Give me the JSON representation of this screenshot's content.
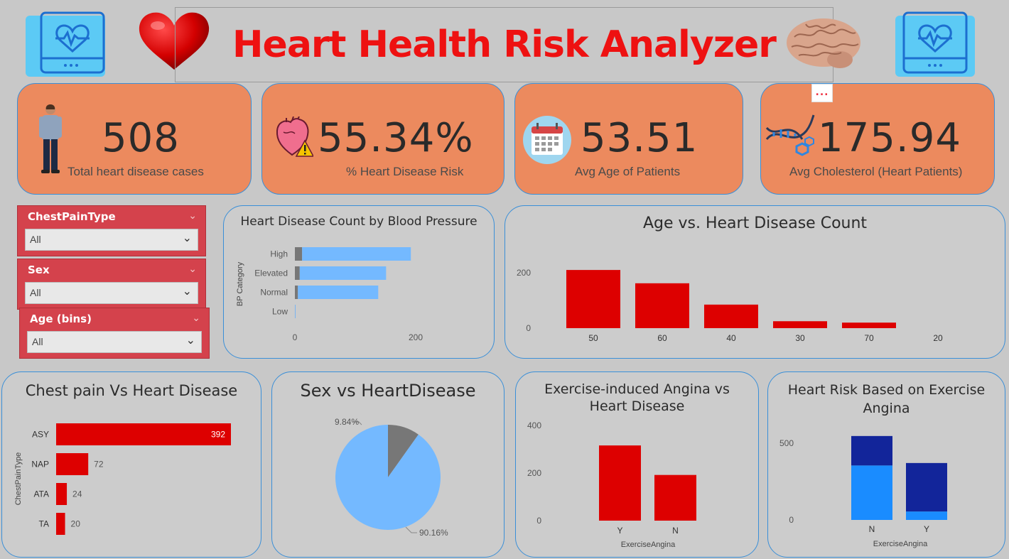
{
  "header": {
    "title": "Heart Health Risk Analyzer",
    "icons": [
      "monitor-heartbeat-icon",
      "heart-icon",
      "brain-icon",
      "monitor-heartbeat-icon"
    ]
  },
  "colors": {
    "background": "#c8c8c8",
    "kpi_card": "#ec8a5e",
    "title_red": "#ee1111",
    "bar_red": "#dd0000",
    "bar_blue": "#74b9ff",
    "bar_gray": "#777777",
    "dark_blue": "#12259a",
    "mid_blue": "#1a8cff",
    "slicer_red": "#d4424c",
    "panel_border": "#3a8fd8"
  },
  "kpis": [
    {
      "value": "508",
      "label": "Total heart disease cases",
      "icon": "person-icon"
    },
    {
      "value": "55.34%",
      "label": "% Heart Disease Risk",
      "icon": "heart-warning-icon"
    },
    {
      "value": "53.51",
      "label": "Avg Age of Patients",
      "icon": "calendar-icon"
    },
    {
      "value": "175.94",
      "label": "Avg Cholesterol (Heart Patients)",
      "icon": "dna-icon"
    }
  ],
  "more_options": "...",
  "slicers": [
    {
      "title": "ChestPainType",
      "value": "All"
    },
    {
      "title": "Sex",
      "value": "All"
    },
    {
      "title": "Age (bins)",
      "value": "All"
    }
  ],
  "chart_data": [
    {
      "id": "bp",
      "type": "bar",
      "orientation": "horizontal",
      "stacked": true,
      "title": "Heart Disease Count by Blood Pressure",
      "ylabel": "BP Category",
      "categories": [
        "High",
        "Elevated",
        "Normal",
        "Low"
      ],
      "series": [
        {
          "values": [
            12,
            8,
            5,
            0
          ]
        },
        {
          "values": [
            180,
            143,
            133,
            1
          ]
        }
      ],
      "xticks": [
        "0",
        "200"
      ],
      "xlim": [
        0,
        240
      ]
    },
    {
      "id": "age",
      "type": "bar",
      "title": "Age vs. Heart Disease Count",
      "categories": [
        "50",
        "60",
        "40",
        "30",
        "70",
        "20"
      ],
      "values": [
        210,
        162,
        85,
        25,
        20,
        0
      ],
      "yticks": [
        "0",
        "200"
      ],
      "ylim": [
        0,
        230
      ]
    },
    {
      "id": "chest",
      "type": "bar",
      "orientation": "horizontal",
      "title": "Chest pain Vs Heart Disease",
      "ylabel": "ChestPainType",
      "categories": [
        "ASY",
        "NAP",
        "ATA",
        "TA"
      ],
      "values": [
        392,
        72,
        24,
        20
      ],
      "data_labels": [
        "392",
        "72",
        "24",
        "20"
      ],
      "xlim": [
        0,
        440
      ]
    },
    {
      "id": "sex",
      "type": "pie",
      "title": "Sex vs HeartDisease",
      "slices": [
        {
          "value": 9.84,
          "label": "9.84%"
        },
        {
          "value": 90.16,
          "label": "90.16%"
        }
      ]
    },
    {
      "id": "angina",
      "type": "bar",
      "title": "Exercise-induced Angina vs Heart Disease",
      "xlabel": "ExerciseAngina",
      "categories": [
        "Y",
        "N"
      ],
      "values": [
        316,
        192
      ],
      "yticks": [
        "0",
        "200",
        "400"
      ],
      "ylim": [
        0,
        420
      ]
    },
    {
      "id": "risk",
      "type": "bar",
      "stacked": true,
      "title": "Heart Risk Based on Exercise Angina",
      "xlabel": "ExerciseAngina",
      "categories": [
        "N",
        "Y"
      ],
      "series": [
        {
          "values": [
            355,
            55
          ]
        },
        {
          "values": [
            192,
            316
          ]
        }
      ],
      "yticks": [
        "0",
        "500"
      ],
      "ylim": [
        0,
        620
      ]
    }
  ]
}
